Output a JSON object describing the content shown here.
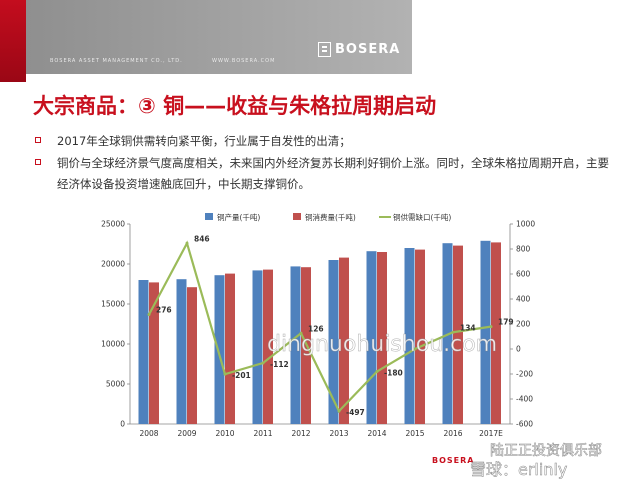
{
  "header": {
    "company": "BOSERA ASSET MANAGEMENT CO., LTD.",
    "url": "WWW.BOSERA.COM",
    "logo_text": "BOSERA"
  },
  "title": "大宗商品：③  铜——收益与朱格拉周期启动",
  "bullets": [
    "2017年全球铜供需转向紧平衡，行业属于自发性的出清；",
    "铜价与全球经济景气度高度相关，未来国内外经济复苏长期利好铜价上涨。同时，全球朱格拉周期开启，主要经济体设备投资增速触底回升，中长期支撑铜价。"
  ],
  "footer_logo": "BOSERA",
  "watermarks": [
    "dingnuohuishou.com",
    "陆正正投资俱乐部",
    "雪球：erlinly"
  ],
  "chart_data": {
    "type": "bar",
    "categories": [
      "2008",
      "2009",
      "2010",
      "2011",
      "2012",
      "2013",
      "2014",
      "2015",
      "2016",
      "2017E"
    ],
    "series": [
      {
        "name": "铜产量(千吨)",
        "type": "bar",
        "axis": "left",
        "color": "#4f81bd",
        "values": [
          18000,
          18100,
          18600,
          19200,
          19700,
          20500,
          21600,
          22000,
          22600,
          22900
        ]
      },
      {
        "name": "铜消费量(千吨)",
        "type": "bar",
        "axis": "left",
        "color": "#c0504d",
        "values": [
          17700,
          17100,
          18800,
          19300,
          19600,
          20800,
          21500,
          21800,
          22300,
          22700
        ]
      },
      {
        "name": "铜供需缺口(千吨)",
        "type": "line",
        "axis": "right",
        "color": "#9bbb59",
        "values": [
          276,
          846,
          -201,
          -112,
          126,
          -497,
          -180,
          0,
          134,
          179
        ],
        "labels": [
          "276",
          "846",
          "-201",
          "-112",
          "126",
          "-497",
          "-180",
          "",
          "134",
          "179"
        ]
      }
    ],
    "ylim": [
      0,
      25000
    ],
    "yticks": [
      "0",
      "5000",
      "10000",
      "15000",
      "20000",
      "25000"
    ],
    "y2lim": [
      -600,
      1000
    ],
    "y2ticks": [
      "-600",
      "-400",
      "-200",
      "0",
      "200",
      "400",
      "600",
      "800",
      "1000"
    ],
    "legend_position": "top",
    "grid": false
  }
}
